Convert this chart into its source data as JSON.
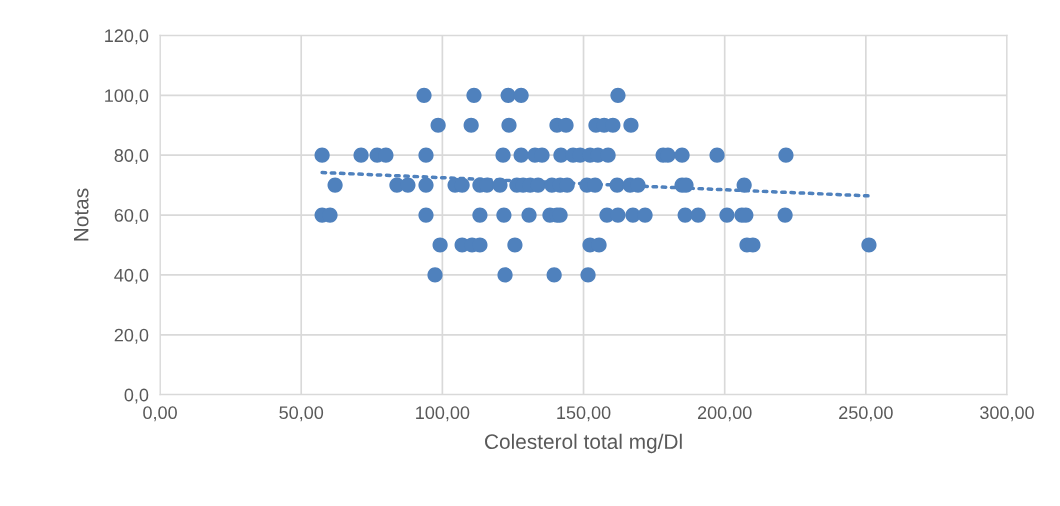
{
  "chart_data": {
    "type": "scatter",
    "xlabel": "Colesterol total mg/Dl",
    "ylabel": "Notas",
    "grid": true,
    "legend": false,
    "xlim": [
      0,
      300
    ],
    "ylim": [
      0,
      120
    ],
    "xticks": [
      {
        "value": 0,
        "label": "0,00"
      },
      {
        "value": 50,
        "label": "50,00"
      },
      {
        "value": 100,
        "label": "100,00"
      },
      {
        "value": 150,
        "label": "150,00"
      },
      {
        "value": 200,
        "label": "200,00"
      },
      {
        "value": 250,
        "label": "250,00"
      },
      {
        "value": 300,
        "label": "300,00"
      }
    ],
    "yticks": [
      {
        "value": 0,
        "label": "0,0"
      },
      {
        "value": 20,
        "label": "20,0"
      },
      {
        "value": 40,
        "label": "40,0"
      },
      {
        "value": 60,
        "label": "60,0"
      },
      {
        "value": 80,
        "label": "80,0"
      },
      {
        "value": 100,
        "label": "100,0"
      },
      {
        "value": 120,
        "label": "120,0"
      }
    ],
    "series": [
      {
        "color": "#4f81bd",
        "marker": "circle",
        "x": [
          93.5,
          111.2,
          123.3,
          127.9,
          162.2,
          98.5,
          110.2,
          123.6,
          140.6,
          143.8,
          154.4,
          157.3,
          160.4,
          166.8,
          57.4,
          71.2,
          76.9,
          80.0,
          94.2,
          121.5,
          127.9,
          132.8,
          135.3,
          142.0,
          146.3,
          148.8,
          152.3,
          155.1,
          158.7,
          178.2,
          179.9,
          184.9,
          197.3,
          221.7,
          62.0,
          83.9,
          87.8,
          94.2,
          104.5,
          107.0,
          113.3,
          115.8,
          120.4,
          126.4,
          128.6,
          131.1,
          133.9,
          138.8,
          141.7,
          144.2,
          151.2,
          154.1,
          161.9,
          166.5,
          169.3,
          184.9,
          186.3,
          206.9,
          57.4,
          60.2,
          94.2,
          113.3,
          121.8,
          130.7,
          138.1,
          140.6,
          141.7,
          158.3,
          162.2,
          167.5,
          171.8,
          186.0,
          190.6,
          200.8,
          206.1,
          207.5,
          221.4,
          99.2,
          107.0,
          110.5,
          113.3,
          125.7,
          152.3,
          155.5,
          207.9,
          210.0,
          251.1,
          97.4,
          122.2,
          139.6,
          151.6
        ],
        "values": [
          100,
          100,
          100,
          100,
          100,
          90,
          90,
          90,
          90,
          90,
          90,
          90,
          90,
          90,
          80,
          80,
          80,
          80,
          80,
          80,
          80,
          80,
          80,
          80,
          80,
          80,
          80,
          80,
          80,
          80,
          80,
          80,
          80,
          80,
          70,
          70,
          70,
          70,
          70,
          70,
          70,
          70,
          70,
          70,
          70,
          70,
          70,
          70,
          70,
          70,
          70,
          70,
          70,
          70,
          70,
          70,
          70,
          70,
          60,
          60,
          60,
          60,
          60,
          60,
          60,
          60,
          60,
          60,
          60,
          60,
          60,
          60,
          60,
          60,
          60,
          60,
          60,
          50,
          50,
          50,
          50,
          50,
          50,
          50,
          50,
          50,
          50,
          40,
          40,
          40,
          40
        ]
      },
      {
        "type": "line",
        "color": "#4f81bd",
        "line_style": "dotted",
        "marker": "none",
        "x": [
          57.4,
          251.1
        ],
        "values": [
          74.2,
          66.4
        ]
      }
    ]
  }
}
